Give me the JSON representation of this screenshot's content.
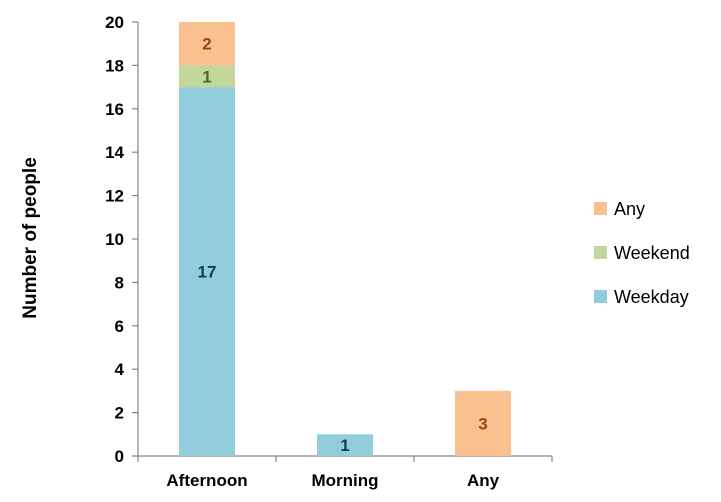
{
  "chart_data": {
    "type": "bar",
    "stacked": true,
    "categories": [
      "Afternoon",
      "Morning",
      "Any"
    ],
    "series": [
      {
        "name": "Weekday",
        "values": [
          17,
          1,
          0
        ],
        "color": "#92CDDC",
        "label_color": "#17375E"
      },
      {
        "name": "Weekend",
        "values": [
          1,
          0,
          0
        ],
        "color": "#C3D69B",
        "label_color": "#4F6228"
      },
      {
        "name": "Any",
        "values": [
          2,
          0,
          3
        ],
        "color": "#FAC090",
        "label_color": "#984807"
      }
    ],
    "ylabel": "Number of people",
    "xlabel": "",
    "ylim": [
      0,
      20
    ],
    "yticks": [
      0,
      2,
      4,
      6,
      8,
      10,
      12,
      14,
      16,
      18,
      20
    ],
    "grid": false,
    "legend_position": "right",
    "legend_order": [
      "Any",
      "Weekend",
      "Weekday"
    ]
  }
}
